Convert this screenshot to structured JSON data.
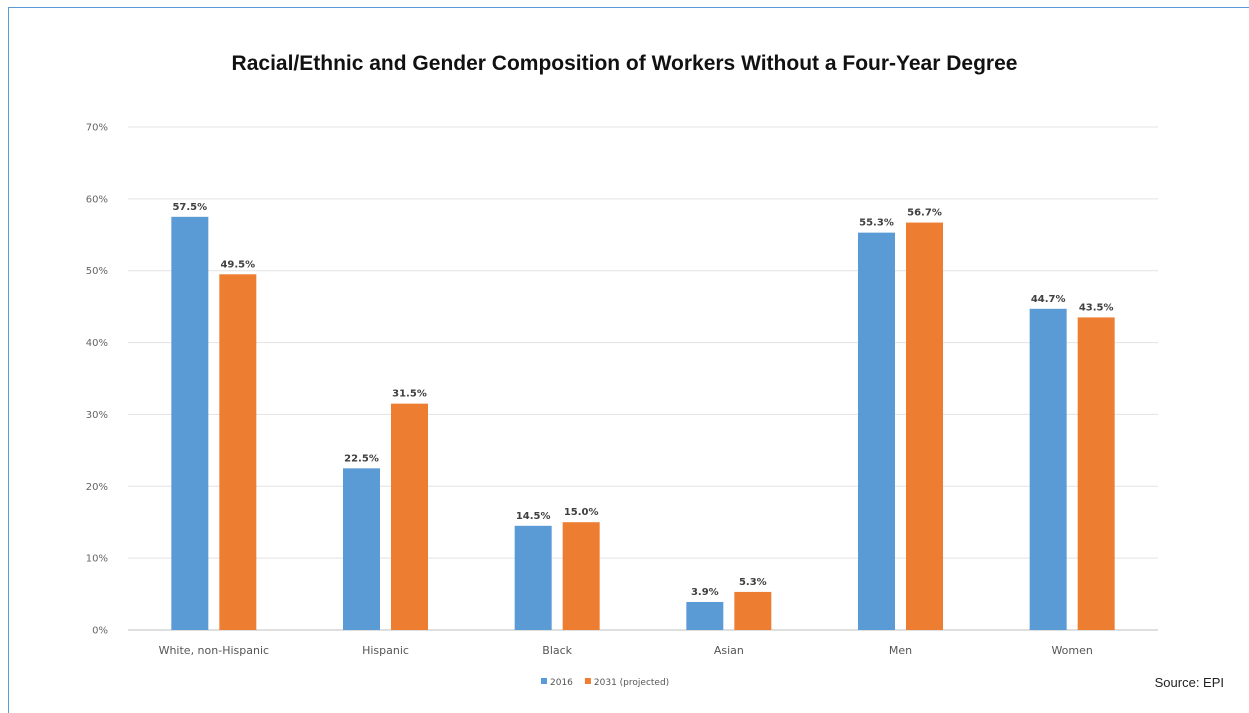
{
  "chart_data": {
    "type": "bar",
    "title": "Racial/Ethnic and Gender Composition of Workers Without a Four-Year Degree",
    "categories": [
      "White, non-Hispanic",
      "Hispanic",
      "Black",
      "Asian",
      "Men",
      "Women"
    ],
    "series": [
      {
        "name": "2016",
        "color": "#5b9bd5",
        "values": [
          57.5,
          22.5,
          14.5,
          3.9,
          55.3,
          44.7
        ],
        "labels": [
          "57.5%",
          "22.5%",
          "14.5%",
          "3.9%",
          "55.3%",
          "44.7%"
        ]
      },
      {
        "name": "2031 (projected)",
        "color": "#ed7d31",
        "values": [
          49.5,
          31.5,
          15.0,
          5.3,
          56.7,
          43.5
        ],
        "labels": [
          "49.5%",
          "31.5%",
          "15.0%",
          "5.3%",
          "56.7%",
          "43.5%"
        ]
      }
    ],
    "ylim": [
      0,
      70
    ],
    "yticks": [
      0,
      10,
      20,
      30,
      40,
      50,
      60,
      70
    ],
    "ytick_labels": [
      "0%",
      "10%",
      "20%",
      "30%",
      "40%",
      "50%",
      "60%",
      "70%"
    ],
    "grid": true,
    "legend_position": "bottom-center"
  },
  "source_note": "Source: EPI"
}
